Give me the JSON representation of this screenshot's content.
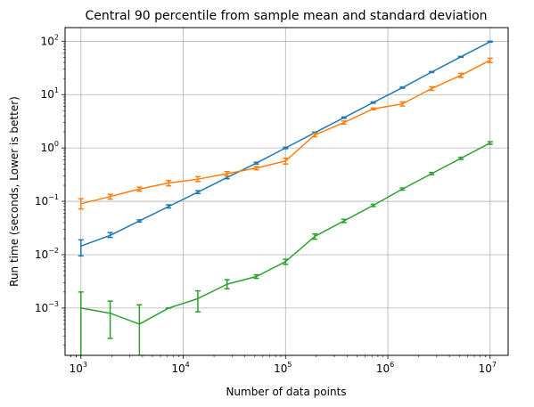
{
  "chart_data": {
    "type": "line",
    "title": "Central 90 percentile from sample mean and standard deviation",
    "xlabel": "Number of data points",
    "ylabel": "Run time (seconds, Lower is better)",
    "xscale": "log",
    "yscale": "log",
    "xlim": [
      700,
      15000000
    ],
    "ylim": [
      0.00013,
      180
    ],
    "grid": true,
    "x_ticks": [
      {
        "value": 1000,
        "base": "10",
        "exp": "3"
      },
      {
        "value": 10000,
        "base": "10",
        "exp": "4"
      },
      {
        "value": 100000,
        "base": "10",
        "exp": "5"
      },
      {
        "value": 1000000,
        "base": "10",
        "exp": "6"
      },
      {
        "value": 10000000,
        "base": "10",
        "exp": "7"
      }
    ],
    "y_ticks": [
      {
        "value": 0.001,
        "base": "10",
        "exp": "−3"
      },
      {
        "value": 0.01,
        "base": "10",
        "exp": "−2"
      },
      {
        "value": 0.1,
        "base": "10",
        "exp": "−1"
      },
      {
        "value": 1,
        "base": "10",
        "exp": "0"
      },
      {
        "value": 10,
        "base": "10",
        "exp": "1"
      },
      {
        "value": 100,
        "base": "10",
        "exp": "2"
      }
    ],
    "x": [
      1000,
      1931,
      3728,
      7197,
      13895,
      26827,
      51795,
      100000,
      193070,
      372759,
      719686,
      1389495,
      2682696,
      5179475,
      10000000
    ],
    "series": [
      {
        "color": "#1f77b4",
        "values": [
          0.0145,
          0.023,
          0.043,
          0.08,
          0.148,
          0.28,
          0.52,
          1.0,
          1.93,
          3.7,
          7.1,
          13.5,
          26.5,
          51.0,
          98.0
        ],
        "err_low": [
          0.0095,
          0.021,
          0.041,
          0.075,
          0.14,
          0.265,
          0.5,
          0.97,
          1.88,
          3.6,
          6.9,
          13.2,
          26.0,
          50.0,
          96.0
        ],
        "err_high": [
          0.019,
          0.026,
          0.045,
          0.086,
          0.158,
          0.3,
          0.54,
          1.03,
          1.98,
          3.8,
          7.3,
          13.8,
          27.0,
          52.0,
          100.0
        ]
      },
      {
        "color": "#ff7f0e",
        "values": [
          0.09,
          0.123,
          0.17,
          0.22,
          0.26,
          0.33,
          0.42,
          0.57,
          1.75,
          3.0,
          5.4,
          6.7,
          13.0,
          23.0,
          44.0
        ],
        "err_low": [
          0.072,
          0.11,
          0.155,
          0.195,
          0.235,
          0.3,
          0.39,
          0.5,
          1.62,
          2.8,
          5.2,
          6.1,
          12.0,
          21.0,
          40.0
        ],
        "err_high": [
          0.112,
          0.135,
          0.185,
          0.245,
          0.29,
          0.36,
          0.45,
          0.64,
          1.88,
          3.2,
          5.6,
          7.3,
          14.0,
          25.0,
          48.0
        ]
      },
      {
        "color": "#2ca02c",
        "values": [
          0.001,
          0.0008,
          0.0005,
          0.001,
          0.0015,
          0.0028,
          0.0039,
          0.0074,
          0.022,
          0.043,
          0.084,
          0.17,
          0.33,
          0.64,
          1.24
        ],
        "err_low": [
          0.0001,
          0.00027,
          0.0001,
          0.001,
          0.00085,
          0.0023,
          0.0036,
          0.0066,
          0.0195,
          0.04,
          0.08,
          0.162,
          0.315,
          0.61,
          1.17
        ],
        "err_high": [
          0.002,
          0.00135,
          0.00115,
          0.001,
          0.0021,
          0.0034,
          0.0042,
          0.0082,
          0.0245,
          0.046,
          0.088,
          0.178,
          0.345,
          0.67,
          1.31
        ]
      }
    ]
  }
}
